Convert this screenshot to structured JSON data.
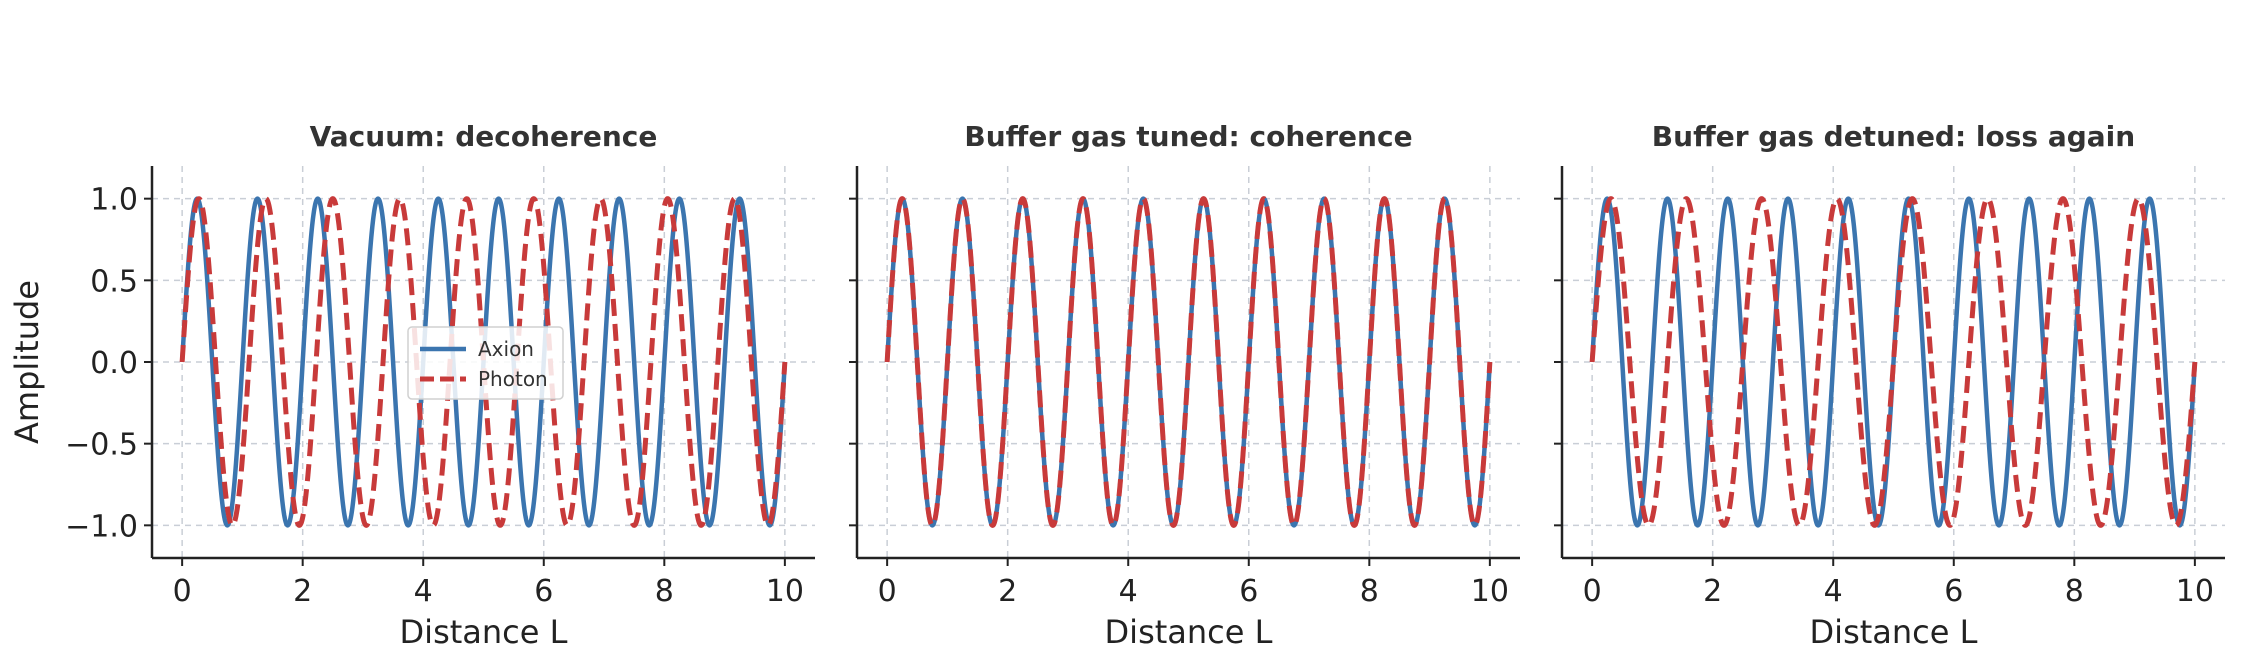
{
  "chart_data": [
    {
      "type": "line",
      "title": "Vacuum: decoherence",
      "xlabel": "Distance L",
      "ylabel": "Amplitude",
      "xlim": [
        -0.5,
        10.5
      ],
      "ylim": [
        -1.2,
        1.2
      ],
      "xticks": [
        0,
        2,
        4,
        6,
        8,
        10
      ],
      "yticks": [
        1.0,
        0.5,
        0.0,
        -0.5,
        -1.0
      ],
      "ytick_labels": [
        "1.0",
        "0.5",
        "0.0",
        "−0.5",
        "−1.0"
      ],
      "grid": true,
      "legend": "center-left",
      "series": [
        {
          "name": "Axion",
          "function": "sin(2π·L)",
          "frequency": 1.0,
          "x_range": [
            0,
            10
          ],
          "color": "#3b75af",
          "style": "solid"
        },
        {
          "name": "Photon",
          "function": "sin(2π·0.9·L)",
          "frequency": 0.9,
          "x_range": [
            0,
            10
          ],
          "color": "#c83a3a",
          "style": "dashed"
        }
      ]
    },
    {
      "type": "line",
      "title": "Buffer gas tuned: coherence",
      "xlabel": "Distance L",
      "xlim": [
        -0.5,
        10.5
      ],
      "ylim": [
        -1.2,
        1.2
      ],
      "xticks": [
        0,
        2,
        4,
        6,
        8,
        10
      ],
      "grid": true,
      "series": [
        {
          "name": "Axion",
          "function": "sin(2π·L)",
          "frequency": 1.0,
          "x_range": [
            0,
            10
          ],
          "color": "#3b75af",
          "style": "solid"
        },
        {
          "name": "Photon",
          "function": "sin(2π·L)",
          "frequency": 1.0,
          "x_range": [
            0,
            10
          ],
          "color": "#c83a3a",
          "style": "dashed"
        }
      ]
    },
    {
      "type": "line",
      "title": "Buffer gas detuned: loss again",
      "xlabel": "Distance L",
      "xlim": [
        -0.5,
        10.5
      ],
      "ylim": [
        -1.2,
        1.2
      ],
      "xticks": [
        0,
        2,
        4,
        6,
        8,
        10
      ],
      "grid": true,
      "series": [
        {
          "name": "Axion",
          "function": "sin(2π·L)",
          "frequency": 1.0,
          "x_range": [
            0,
            10
          ],
          "color": "#3b75af",
          "style": "solid"
        },
        {
          "name": "Photon",
          "function": "sin(2π·0.8·L)",
          "frequency": 0.8,
          "x_range": [
            0,
            10
          ],
          "color": "#c83a3a",
          "style": "dashed"
        }
      ]
    }
  ]
}
